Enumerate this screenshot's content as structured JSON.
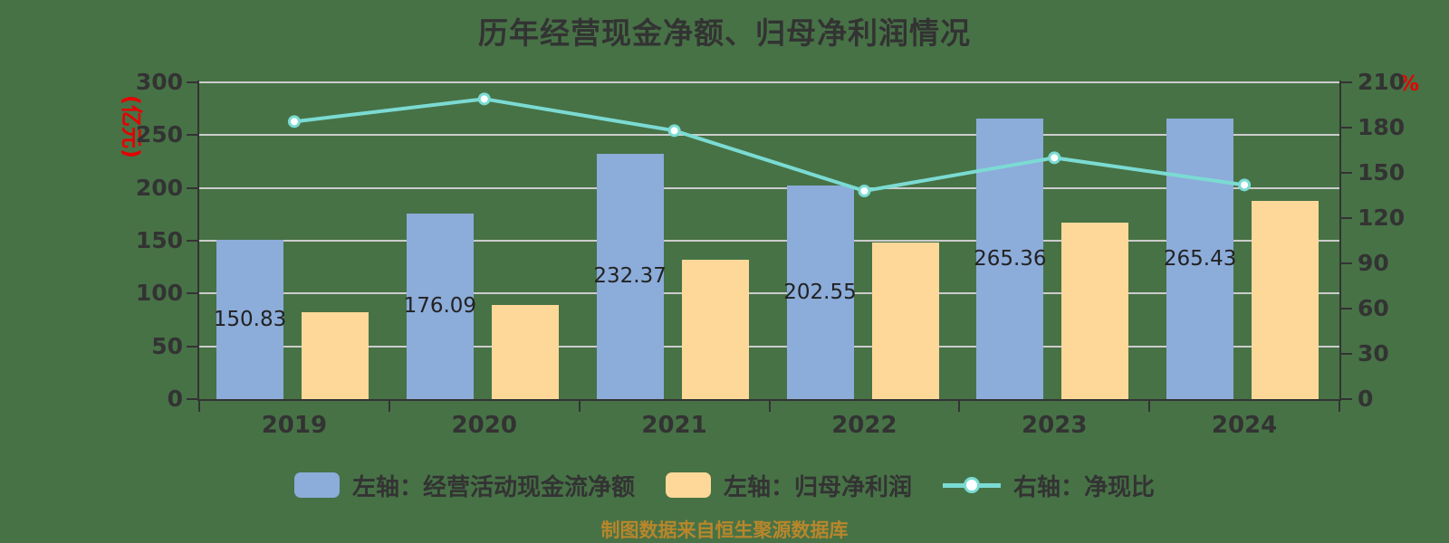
{
  "title": "历年经营现金净额、归母净利润情况",
  "footer": "制图数据来自恒生聚源数据库",
  "colors": {
    "background": "#477246",
    "bar_blue": "#8CACDA",
    "bar_yellow": "#FED898",
    "line_teal": "#7BDBD3",
    "marker_fill": "#FFFFFF",
    "grid": "#CCCCCC",
    "axis": "#333333",
    "tick_text": "#333333",
    "value_label": "#222222",
    "axis_name_red": "#E60000",
    "footer_gold": "#B8862B"
  },
  "left_axis": {
    "name": "(亿元)",
    "min": 0,
    "max": 300,
    "step": 50,
    "ticks": [
      "0",
      "50",
      "100",
      "150",
      "200",
      "250",
      "300"
    ]
  },
  "right_axis": {
    "name": "%",
    "min": 0,
    "max": 210,
    "step": 30,
    "ticks": [
      "0",
      "30",
      "60",
      "90",
      "120",
      "150",
      "180",
      "210"
    ]
  },
  "chart_data": {
    "type": "bar+line combo",
    "title": "历年经营现金净额、归母净利润情况",
    "categories": [
      "2019",
      "2020",
      "2021",
      "2022",
      "2023",
      "2024"
    ],
    "left_ylim": [
      0,
      300
    ],
    "right_ylim": [
      0,
      210
    ],
    "grid": "horizontal gridlines",
    "legend_position": "bottom",
    "series": [
      {
        "name": "左轴：经营活动现金流净额",
        "type": "bar",
        "axis": "left",
        "color": "#8CACDA",
        "values": [
          150.83,
          176.09,
          232.37,
          202.55,
          265.36,
          265.43
        ],
        "value_labels": [
          "150.83",
          "176.09",
          "232.37",
          "202.55",
          "265.36",
          "265.43"
        ]
      },
      {
        "name": "左轴：归母净利润",
        "type": "bar",
        "axis": "left",
        "color": "#FED898",
        "values": [
          82,
          89,
          132,
          148,
          167,
          188
        ],
        "value_labels": []
      },
      {
        "name": "右轴：净现比",
        "type": "line",
        "axis": "right",
        "unit": "%",
        "color": "#7BDBD3",
        "values": [
          184,
          199,
          178,
          138,
          160,
          142
        ],
        "value_labels": []
      }
    ]
  }
}
